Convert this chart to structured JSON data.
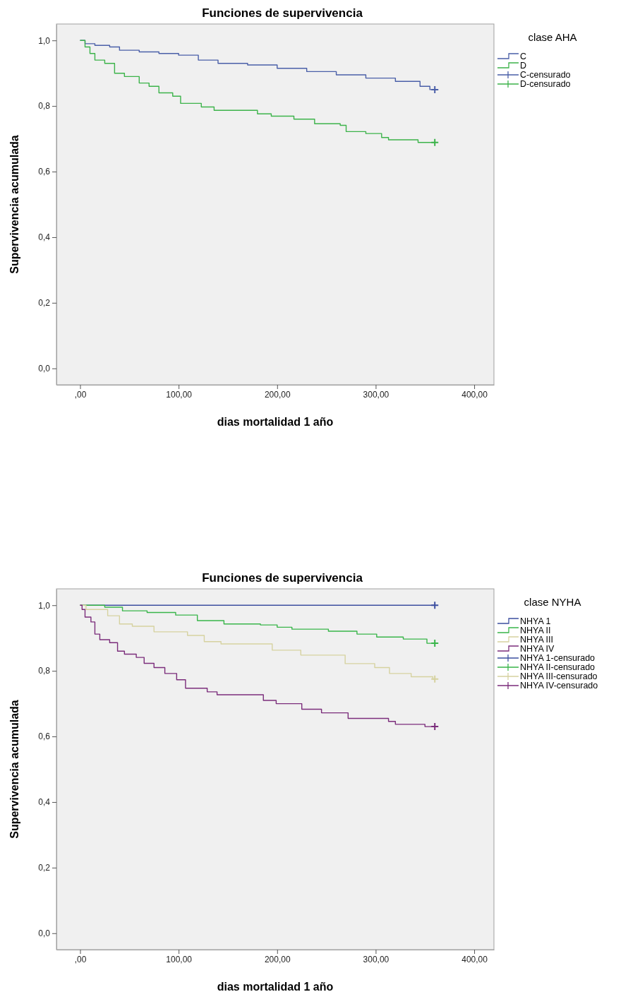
{
  "chart_data": [
    {
      "type": "step",
      "title": "Funciones de supervivencia",
      "xlabel": "dias mortalidad 1 año",
      "ylabel": "Supervivencia acumulada",
      "legend_title": "clase AHA",
      "legend": "right",
      "xlim": [
        -24,
        420
      ],
      "ylim": [
        -0.05,
        1.05
      ],
      "xticks": [
        {
          "value": 0,
          "label": ",00"
        },
        {
          "value": 100,
          "label": "100,00"
        },
        {
          "value": 200,
          "label": "200,00"
        },
        {
          "value": 300,
          "label": "300,00"
        },
        {
          "value": 400,
          "label": "400,00"
        }
      ],
      "yticks": [
        {
          "value": 0,
          "label": "0,0"
        },
        {
          "value": 0.2,
          "label": "0,2"
        },
        {
          "value": 0.4,
          "label": "0,4"
        },
        {
          "value": 0.6,
          "label": "0,6"
        },
        {
          "value": 0.8,
          "label": "0,8"
        },
        {
          "value": 1,
          "label": "1,0"
        }
      ],
      "series": [
        {
          "name": "C",
          "color": "#4a5fa8",
          "x": [
            0,
            5,
            15,
            30,
            40,
            60,
            80,
            100,
            120,
            140,
            170,
            200,
            230,
            260,
            290,
            320,
            345,
            355,
            360
          ],
          "values": [
            1,
            0.99,
            0.985,
            0.98,
            0.97,
            0.965,
            0.96,
            0.955,
            0.94,
            0.93,
            0.925,
            0.915,
            0.905,
            0.895,
            0.885,
            0.875,
            0.86,
            0.85,
            0.85
          ]
        },
        {
          "name": "D",
          "color": "#3cb34a",
          "x": [
            0,
            5,
            10,
            15,
            25,
            35,
            45,
            60,
            70,
            80,
            94,
            102,
            123,
            136,
            180,
            194,
            217,
            238,
            264,
            270,
            290,
            306,
            313,
            343,
            360
          ],
          "values": [
            1,
            0.98,
            0.96,
            0.94,
            0.93,
            0.9,
            0.89,
            0.87,
            0.86,
            0.84,
            0.83,
            0.808,
            0.797,
            0.787,
            0.776,
            0.769,
            0.76,
            0.746,
            0.741,
            0.722,
            0.716,
            0.704,
            0.697,
            0.689,
            0.689
          ]
        },
        {
          "name": "C-censurado",
          "type": "scatter",
          "marker": "cross",
          "color": "#4a5fa8",
          "x": [
            360
          ],
          "values": [
            0.85
          ]
        },
        {
          "name": "D-censurado",
          "type": "scatter",
          "marker": "cross",
          "color": "#3cb34a",
          "x": [
            360
          ],
          "values": [
            0.689
          ]
        }
      ]
    },
    {
      "type": "step",
      "title": "Funciones de supervivencia",
      "xlabel": "dias mortalidad 1 año",
      "ylabel": "Supervivencia acumulada",
      "legend_title": "clase NYHA",
      "legend": "right",
      "xlim": [
        -24,
        420
      ],
      "ylim": [
        -0.05,
        1.05
      ],
      "xticks": [
        {
          "value": 0,
          "label": ",00"
        },
        {
          "value": 100,
          "label": "100,00"
        },
        {
          "value": 200,
          "label": "200,00"
        },
        {
          "value": 300,
          "label": "300,00"
        },
        {
          "value": 400,
          "label": "400,00"
        }
      ],
      "yticks": [
        {
          "value": 0,
          "label": "0,0"
        },
        {
          "value": 0.2,
          "label": "0,2"
        },
        {
          "value": 0.4,
          "label": "0,4"
        },
        {
          "value": 0.6,
          "label": "0,6"
        },
        {
          "value": 0.8,
          "label": "0,8"
        },
        {
          "value": 1,
          "label": "1,0"
        }
      ],
      "series": [
        {
          "name": "NHYA 1",
          "color": "#3d4fa0",
          "x": [
            0,
            360
          ],
          "values": [
            1,
            1
          ]
        },
        {
          "name": "NHYA II",
          "color": "#39b54a",
          "x": [
            0,
            25,
            43,
            68,
            97,
            119,
            146,
            183,
            200,
            215,
            252,
            281,
            301,
            328,
            352,
            360
          ],
          "values": [
            1,
            0.994,
            0.983,
            0.978,
            0.97,
            0.953,
            0.943,
            0.94,
            0.933,
            0.927,
            0.921,
            0.912,
            0.903,
            0.897,
            0.884,
            0.884
          ]
        },
        {
          "name": "NHYA III",
          "color": "#d6d2a0",
          "x": [
            0,
            6,
            28,
            40,
            53,
            75,
            109,
            126,
            143,
            195,
            224,
            269,
            299,
            314,
            336,
            358,
            360
          ],
          "values": [
            1,
            0.987,
            0.968,
            0.943,
            0.936,
            0.919,
            0.908,
            0.889,
            0.882,
            0.863,
            0.848,
            0.822,
            0.81,
            0.792,
            0.782,
            0.775,
            0.775
          ]
        },
        {
          "name": "NHYA IV",
          "color": "#7b2d7b",
          "x": [
            0,
            2,
            5,
            11,
            15,
            20,
            30,
            38,
            45,
            57,
            65,
            75,
            86,
            98,
            107,
            129,
            139,
            186,
            199,
            225,
            245,
            272,
            313,
            320,
            350,
            360
          ],
          "values": [
            1,
            0.987,
            0.964,
            0.949,
            0.912,
            0.895,
            0.886,
            0.86,
            0.851,
            0.841,
            0.823,
            0.81,
            0.792,
            0.773,
            0.747,
            0.736,
            0.727,
            0.71,
            0.7,
            0.683,
            0.672,
            0.655,
            0.646,
            0.637,
            0.63,
            0.63
          ]
        },
        {
          "name": "NHYA 1-censurado",
          "type": "scatter",
          "marker": "cross",
          "color": "#3d4fa0",
          "x": [
            360
          ],
          "values": [
            1
          ]
        },
        {
          "name": "NHYA II-censurado",
          "type": "scatter",
          "marker": "cross",
          "color": "#39b54a",
          "x": [
            360
          ],
          "values": [
            0.884
          ]
        },
        {
          "name": "NHYA III-censurado",
          "type": "scatter",
          "marker": "cross",
          "color": "#d6d2a0",
          "x": [
            360
          ],
          "values": [
            0.775
          ]
        },
        {
          "name": "NHYA IV-censurado",
          "type": "scatter",
          "marker": "cross",
          "color": "#7b2d7b",
          "x": [
            360
          ],
          "values": [
            0.63
          ]
        }
      ]
    }
  ]
}
